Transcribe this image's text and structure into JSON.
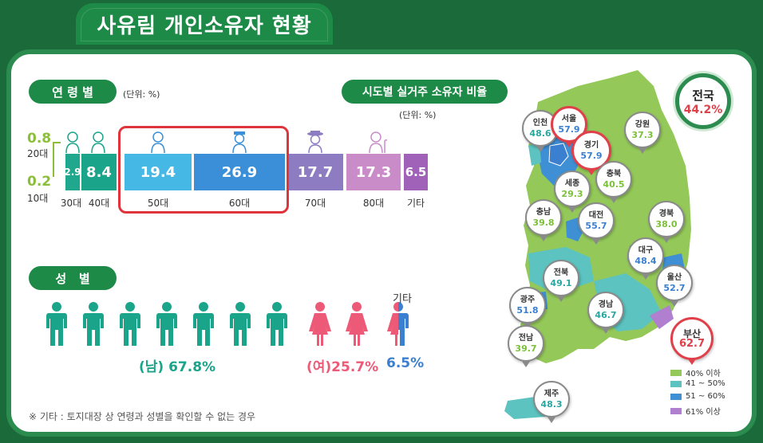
{
  "title": "사유림 개인소유자 현황",
  "age_section": {
    "label": "연 령 별",
    "unit": "(단위: %)",
    "small_top_value": "0.8",
    "small_top_label": "20대",
    "small_bottom_value": "0.2",
    "small_bottom_label": "10대",
    "bars": [
      {
        "label": "30대",
        "value": "2.9",
        "color": "#20a88f"
      },
      {
        "label": "40대",
        "value": "8.4",
        "color": "#1aa58a"
      },
      {
        "label": "50대",
        "value": "19.4",
        "color": "#46b8e6"
      },
      {
        "label": "60대",
        "value": "26.9",
        "color": "#3a8fd8"
      },
      {
        "label": "70대",
        "value": "17.7",
        "color": "#8e7cc3"
      },
      {
        "label": "80대",
        "value": "17.3",
        "color": "#c98cc8"
      },
      {
        "label": "기타",
        "value": "6.5",
        "color": "#9f62b8"
      }
    ]
  },
  "region_section": {
    "label": "시도별 실거주 소유자 비율",
    "unit": "(단위: %)"
  },
  "gender_section": {
    "label": "성   별",
    "male_text": "(남) 67.8%",
    "female_text": "(여)25.7%",
    "other_title": "기타",
    "other_text": "6.5%",
    "male_color": "#1aa58a",
    "female_color": "#ec5a78",
    "other_color": "#3a7fd0"
  },
  "footnote": "※ 기타 : 토지대장 상 연령과 성별을 확인할 수 없는 경우",
  "national": {
    "label": "전국",
    "value": "44.2%"
  },
  "regions": [
    {
      "name": "인천",
      "value": "48.6",
      "color": "#2aa6a0"
    },
    {
      "name": "서울",
      "value": "57.9",
      "color": "#3a7fd0"
    },
    {
      "name": "경기",
      "value": "57.9",
      "color": "#3a7fd0"
    },
    {
      "name": "강원",
      "value": "37.3",
      "color": "#7bbf3a"
    },
    {
      "name": "충북",
      "value": "40.5",
      "color": "#7bbf3a"
    },
    {
      "name": "세종",
      "value": "29.3",
      "color": "#7bbf3a"
    },
    {
      "name": "충남",
      "value": "39.8",
      "color": "#7bbf3a"
    },
    {
      "name": "대전",
      "value": "55.7",
      "color": "#3a7fd0"
    },
    {
      "name": "경북",
      "value": "38.0",
      "color": "#7bbf3a"
    },
    {
      "name": "대구",
      "value": "48.4",
      "color": "#2aa6a0"
    },
    {
      "name": "전북",
      "value": "49.1",
      "color": "#2aa6a0"
    },
    {
      "name": "울산",
      "value": "52.7",
      "color": "#3a7fd0"
    },
    {
      "name": "광주",
      "value": "51.8",
      "color": "#3a7fd0"
    },
    {
      "name": "경남",
      "value": "46.7",
      "color": "#2aa6a0"
    },
    {
      "name": "부산",
      "value": "62.7",
      "color": "#e0404a"
    },
    {
      "name": "전남",
      "value": "39.7",
      "color": "#7bbf3a"
    },
    {
      "name": "제주",
      "value": "48.3",
      "color": "#2aa6a0"
    }
  ],
  "legend": [
    {
      "label": "40% 이하",
      "color": "#94c95a"
    },
    {
      "label": "41 ~ 50%",
      "color": "#5cc3c0"
    },
    {
      "label": "51 ~ 60%",
      "color": "#3f8fd4"
    },
    {
      "label": "61% 이상",
      "color": "#b07fcf"
    }
  ]
}
